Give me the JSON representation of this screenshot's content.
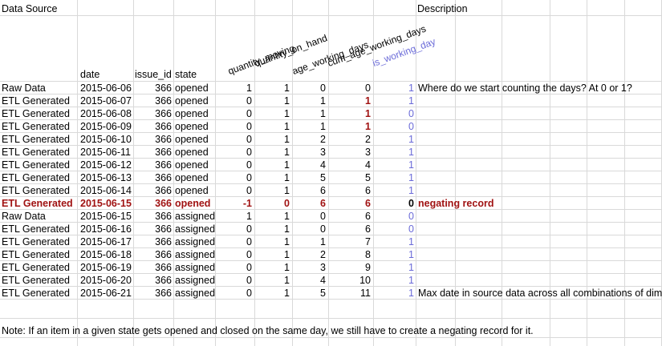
{
  "headers": {
    "data_source": "Data Source",
    "description": "Description",
    "date": "date",
    "issue_id": "issue_id",
    "state": "state",
    "rotated": [
      "quantity_moving",
      "quantity_on_hand",
      "age_working_days",
      "cum_age_working_days",
      "is_working_day"
    ]
  },
  "rows": [
    [
      "Raw Data",
      "2015-06-06",
      "366",
      "opened",
      "1",
      "1",
      "0",
      "0",
      "1",
      "Where do we start counting the days? At 0 or 1?"
    ],
    [
      "ETL Generated",
      "2015-06-07",
      "366",
      "opened",
      "0",
      "1",
      "1",
      "1",
      "1",
      ""
    ],
    [
      "ETL Generated",
      "2015-06-08",
      "366",
      "opened",
      "0",
      "1",
      "1",
      "1",
      "0",
      ""
    ],
    [
      "ETL Generated",
      "2015-06-09",
      "366",
      "opened",
      "0",
      "1",
      "1",
      "1",
      "0",
      ""
    ],
    [
      "ETL Generated",
      "2015-06-10",
      "366",
      "opened",
      "0",
      "1",
      "2",
      "2",
      "1",
      ""
    ],
    [
      "ETL Generated",
      "2015-06-11",
      "366",
      "opened",
      "0",
      "1",
      "3",
      "3",
      "1",
      ""
    ],
    [
      "ETL Generated",
      "2015-06-12",
      "366",
      "opened",
      "0",
      "1",
      "4",
      "4",
      "1",
      ""
    ],
    [
      "ETL Generated",
      "2015-06-13",
      "366",
      "opened",
      "0",
      "1",
      "5",
      "5",
      "1",
      ""
    ],
    [
      "ETL Generated",
      "2015-06-14",
      "366",
      "opened",
      "0",
      "1",
      "6",
      "6",
      "1",
      ""
    ],
    [
      "ETL Generated",
      "2015-06-15",
      "366",
      "opened",
      "-1",
      "0",
      "6",
      "6",
      "0",
      "negating record"
    ],
    [
      "Raw Data",
      "2015-06-15",
      "366",
      "assigned",
      "1",
      "1",
      "0",
      "6",
      "0",
      ""
    ],
    [
      "ETL Generated",
      "2015-06-16",
      "366",
      "assigned",
      "0",
      "1",
      "0",
      "6",
      "0",
      ""
    ],
    [
      "ETL Generated",
      "2015-06-17",
      "366",
      "assigned",
      "0",
      "1",
      "1",
      "7",
      "1",
      ""
    ],
    [
      "ETL Generated",
      "2015-06-18",
      "366",
      "assigned",
      "0",
      "1",
      "2",
      "8",
      "1",
      ""
    ],
    [
      "ETL Generated",
      "2015-06-19",
      "366",
      "assigned",
      "0",
      "1",
      "3",
      "9",
      "1",
      ""
    ],
    [
      "ETL Generated",
      "2015-06-20",
      "366",
      "assigned",
      "0",
      "1",
      "4",
      "10",
      "1",
      ""
    ],
    [
      "ETL Generated",
      "2015-06-21",
      "366",
      "assigned",
      "0",
      "1",
      "5",
      "11",
      "1",
      "Max date in source data across all combinations of dims"
    ]
  ],
  "note": "Note: If an item in a given state gets opened and closed on the same day, we still have to create a negating record for it.",
  "colors": {
    "blue": "#6b6bd8",
    "red": "#a01212",
    "grid": "#d9d9d9"
  }
}
